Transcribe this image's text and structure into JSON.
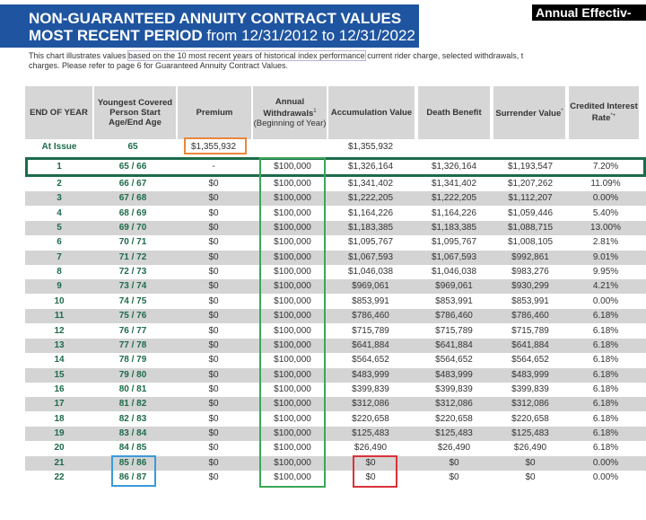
{
  "header": {
    "title_line1": "NON-GUARANTEED ANNUITY CONTRACT VALUES",
    "title_line2_bold": "MOST RECENT PERIOD",
    "title_line2_rest": " from 12/31/2012 to 12/31/2022",
    "corner_label": "Annual Effectiv-"
  },
  "intro": {
    "pre": "This chart illustrates values ",
    "highlight": "based on the 10 most recent years of historical index performance",
    "post": " current rider charge, selected withdrawals, t",
    "line2": "charges. Please refer to page 6 for Guaranteed Annuity Contract Values."
  },
  "table": {
    "columns": [
      {
        "label": "END OF YEAR"
      },
      {
        "label": "Youngest Covered Person Start Age/End Age"
      },
      {
        "label": "Premium"
      },
      {
        "label": "Annual Withdrawals",
        "sup": "1",
        "sub": "(Beginning of Year)"
      },
      {
        "label": "Accumulation Value"
      },
      {
        "label": "Death Benefit"
      },
      {
        "label": "Surrender Value",
        "sup": "*"
      },
      {
        "label": "Credited Interest Rate",
        "sup": "*+"
      }
    ],
    "at_issue": [
      "At Issue",
      "65",
      "$1,355,932",
      "",
      "$1,355,932",
      "",
      "",
      ""
    ],
    "rows": [
      [
        "1",
        "65 / 66",
        "-",
        "$100,000",
        "$1,326,164",
        "$1,326,164",
        "$1,193,547",
        "7.20%"
      ],
      [
        "2",
        "66 / 67",
        "$0",
        "$100,000",
        "$1,341,402",
        "$1,341,402",
        "$1,207,262",
        "11.09%"
      ],
      [
        "3",
        "67 / 68",
        "$0",
        "$100,000",
        "$1,222,205",
        "$1,222,205",
        "$1,112,207",
        "0.00%"
      ],
      [
        "4",
        "68 / 69",
        "$0",
        "$100,000",
        "$1,164,226",
        "$1,164,226",
        "$1,059,446",
        "5.40%"
      ],
      [
        "5",
        "69 / 70",
        "$0",
        "$100,000",
        "$1,183,385",
        "$1,183,385",
        "$1,088,715",
        "13.00%"
      ],
      [
        "6",
        "70 / 71",
        "$0",
        "$100,000",
        "$1,095,767",
        "$1,095,767",
        "$1,008,105",
        "2.81%"
      ],
      [
        "7",
        "71 / 72",
        "$0",
        "$100,000",
        "$1,067,593",
        "$1,067,593",
        "$992,861",
        "9.01%"
      ],
      [
        "8",
        "72 / 73",
        "$0",
        "$100,000",
        "$1,046,038",
        "$1,046,038",
        "$983,276",
        "9.95%"
      ],
      [
        "9",
        "73 / 74",
        "$0",
        "$100,000",
        "$969,061",
        "$969,061",
        "$930,299",
        "4.21%"
      ],
      [
        "10",
        "74 / 75",
        "$0",
        "$100,000",
        "$853,991",
        "$853,991",
        "$853,991",
        "0.00%"
      ],
      [
        "11",
        "75 / 76",
        "$0",
        "$100,000",
        "$786,460",
        "$786,460",
        "$786,460",
        "6.18%"
      ],
      [
        "12",
        "76 / 77",
        "$0",
        "$100,000",
        "$715,789",
        "$715,789",
        "$715,789",
        "6.18%"
      ],
      [
        "13",
        "77 / 78",
        "$0",
        "$100,000",
        "$641,884",
        "$641,884",
        "$641,884",
        "6.18%"
      ],
      [
        "14",
        "78 / 79",
        "$0",
        "$100,000",
        "$564,652",
        "$564,652",
        "$564,652",
        "6.18%"
      ],
      [
        "15",
        "79 / 80",
        "$0",
        "$100,000",
        "$483,999",
        "$483,999",
        "$483,999",
        "6.18%"
      ],
      [
        "16",
        "80 / 81",
        "$0",
        "$100,000",
        "$399,839",
        "$399,839",
        "$399,839",
        "6.18%"
      ],
      [
        "17",
        "81 / 82",
        "$0",
        "$100,000",
        "$312,086",
        "$312,086",
        "$312,086",
        "6.18%"
      ],
      [
        "18",
        "82 / 83",
        "$0",
        "$100,000",
        "$220,658",
        "$220,658",
        "$220,658",
        "6.18%"
      ],
      [
        "19",
        "83 / 84",
        "$0",
        "$100,000",
        "$125,483",
        "$125,483",
        "$125,483",
        "6.18%"
      ],
      [
        "20",
        "84 / 85",
        "$0",
        "$100,000",
        "$26,490",
        "$26,490",
        "$26,490",
        "6.18%"
      ],
      [
        "21",
        "85 / 86",
        "$0",
        "$100,000",
        "$0",
        "$0",
        "$0",
        "0.00%"
      ],
      [
        "22",
        "86 / 87",
        "$0",
        "$100,000",
        "$0",
        "$0",
        "$0",
        "0.00%"
      ]
    ]
  },
  "annotation_colors": {
    "row1": "#1d6b4a",
    "withdrawals": "#3aa757",
    "premium": "#e8873a",
    "age": "#3a9ad9",
    "accumulation": "#d9323a",
    "intro": "#b7b4dc"
  }
}
